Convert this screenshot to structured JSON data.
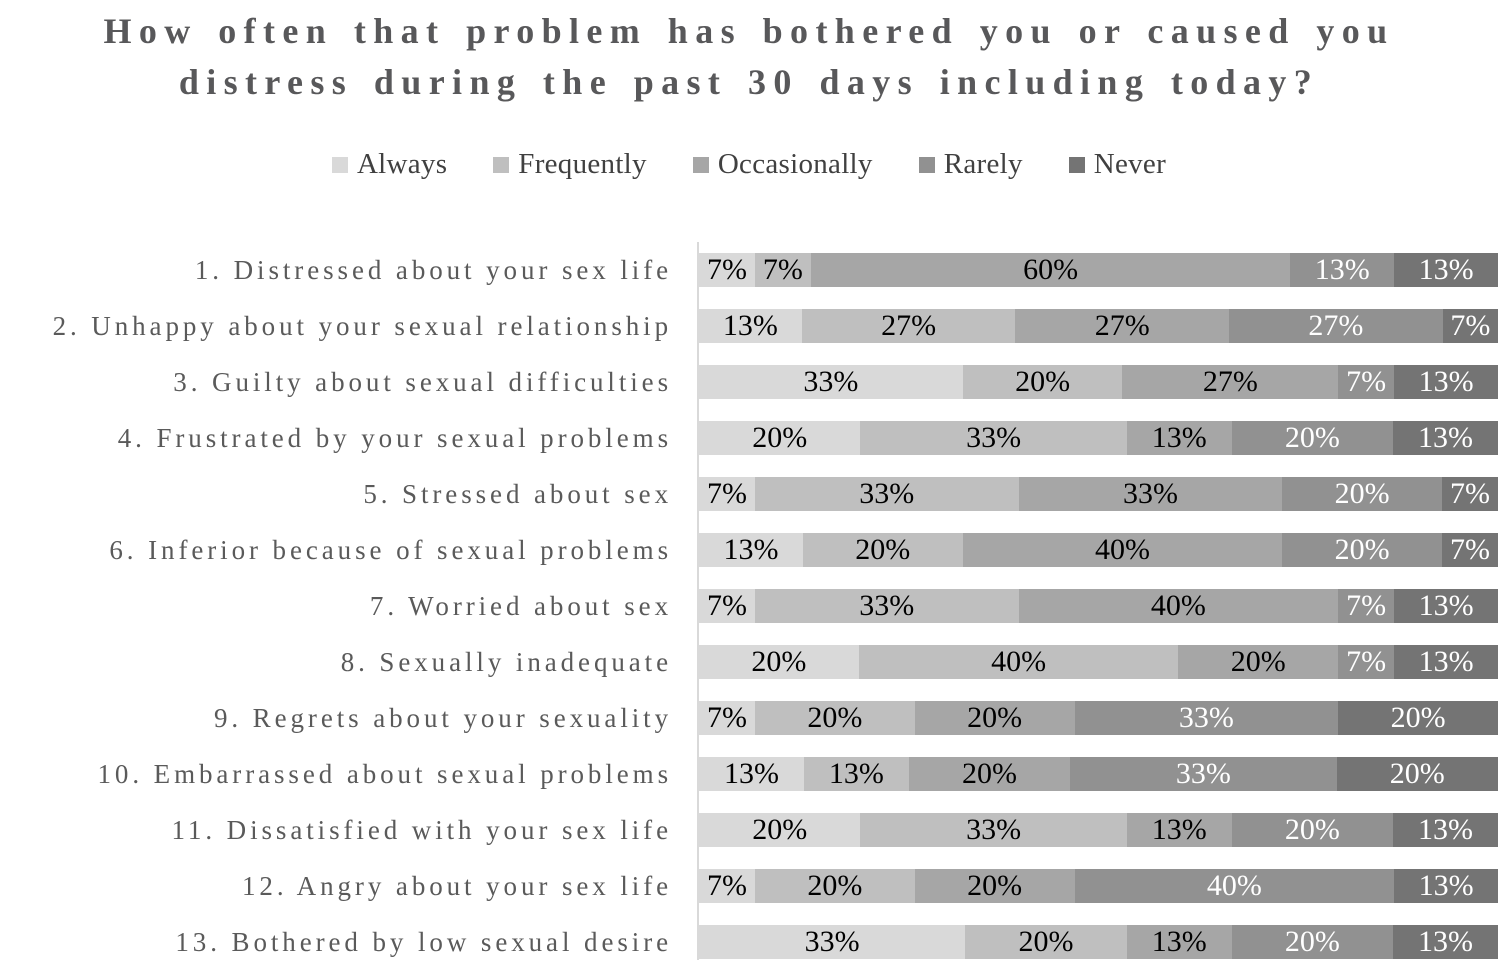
{
  "title": {
    "line1": "How often that problem has bothered you or caused you",
    "line2": "distress during the past 30 days including today?"
  },
  "chart_data": {
    "type": "bar",
    "variant": "horizontal-stacked-100pct",
    "title": "How often that problem has bothered you or caused you distress during the past 30 days including today?",
    "legend_position": "top",
    "value_suffix": "%",
    "categories": [
      "1. Distressed about your sex life",
      "2. Unhappy about your sexual relationship",
      "3. Guilty about sexual difficulties",
      "4. Frustrated by your sexual problems",
      "5. Stressed about sex",
      "6. Inferior because of sexual problems",
      "7. Worried about sex",
      "8. Sexually inadequate",
      "9. Regrets about your sexuality",
      "10. Embarrassed about sexual problems",
      "11. Dissatisfied with your sex life",
      "12. Angry about your sex life",
      "13. Bothered by low sexual desire"
    ],
    "series": [
      {
        "name": "Always",
        "color": "#d9d9d9",
        "label_color": "#000000",
        "values": [
          7,
          13,
          33,
          20,
          7,
          13,
          7,
          20,
          7,
          13,
          20,
          7,
          33
        ]
      },
      {
        "name": "Frequently",
        "color": "#bfbfbf",
        "label_color": "#000000",
        "values": [
          7,
          27,
          20,
          33,
          33,
          20,
          33,
          40,
          20,
          13,
          33,
          20,
          20
        ]
      },
      {
        "name": "Occasionally",
        "color": "#a6a6a6",
        "label_color": "#000000",
        "values": [
          60,
          27,
          27,
          13,
          33,
          40,
          40,
          20,
          20,
          20,
          13,
          20,
          13
        ]
      },
      {
        "name": "Rarely",
        "color": "#919191",
        "label_color": "#ffffff",
        "values": [
          13,
          27,
          7,
          20,
          20,
          20,
          7,
          7,
          33,
          33,
          20,
          40,
          20
        ]
      },
      {
        "name": "Never",
        "color": "#747474",
        "label_color": "#ffffff",
        "values": [
          13,
          7,
          13,
          13,
          7,
          7,
          13,
          13,
          20,
          20,
          13,
          13,
          13
        ]
      }
    ]
  }
}
